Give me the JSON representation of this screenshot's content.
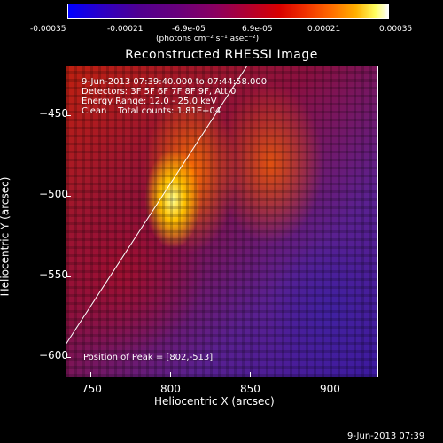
{
  "colorbar": {
    "ticks": [
      "-0.00035",
      "-0.00021",
      "-6.9e-05",
      "6.9e-05",
      "0.00021",
      "0.00035"
    ],
    "units": "(photons cm⁻² s⁻¹ asec⁻²)"
  },
  "title": "Reconstructed RHESSI Image",
  "info": {
    "line1": "9-Jun-2013 07:39:40.000 to 07:44:58.000",
    "line2": "Detectors: 3F 5F 6F 7F 8F 9F, Att 0",
    "line3": "Energy Range: 12.0 - 25.0 keV",
    "line4": "Clean    Total counts: 1.81E+04"
  },
  "peak": "Position of Peak = [802,-513]",
  "axes": {
    "xlabel": "Heliocentric X (arcsec)",
    "ylabel": "Heliocentric Y (arcsec)",
    "xticks": [
      "750",
      "800",
      "850",
      "900"
    ],
    "yticks": [
      "−450",
      "−500",
      "−550",
      "−600"
    ]
  },
  "footer": "9-Jun-2013 07:39"
}
